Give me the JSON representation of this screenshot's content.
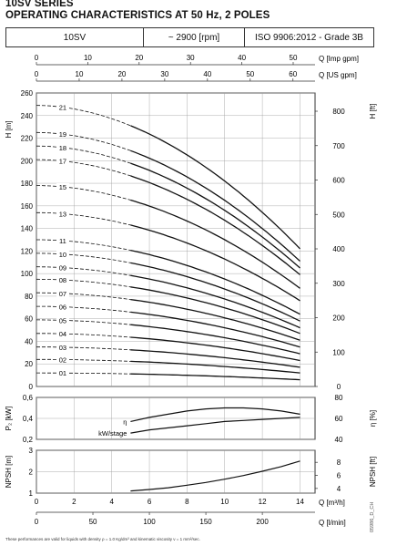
{
  "header": {
    "series": "10SV SERIES",
    "subtitle": "OPERATING CHARACTERISTICS AT 50 Hz, 2 POLES",
    "cells": [
      "10SV",
      "~ 2900 [rpm]",
      "ISO 9906:2012 - Grade 3B"
    ]
  },
  "top_axes": {
    "imp_label": "Q [Imp gpm]",
    "imp_ticks": [
      0,
      10,
      20,
      30,
      40,
      50
    ],
    "us_label": "Q [US gpm]",
    "us_ticks": [
      0,
      10,
      20,
      30,
      40,
      50,
      60
    ]
  },
  "bottom_axes": {
    "m3h_label": "Q [m³/h]",
    "m3h_ticks": [
      0,
      2,
      4,
      6,
      8,
      10,
      12,
      14
    ],
    "lmin_label": "Q [l/min]",
    "lmin_ticks": [
      0,
      50,
      100,
      150,
      200
    ]
  },
  "colors": {
    "curve": "#111111",
    "grid": "#999999",
    "frame": "#333333"
  },
  "chart_data": [
    {
      "type": "line",
      "name": "head",
      "xlabel": "Q [m³/h]",
      "ylabel": "H [m]",
      "ylabel_right": "H [ft]",
      "xlim": [
        0,
        14.8
      ],
      "ylim": [
        0,
        260
      ],
      "yticks": [
        0,
        20,
        40,
        60,
        80,
        100,
        120,
        140,
        160,
        180,
        200,
        220,
        240,
        260
      ],
      "yticks_right": [
        0,
        100,
        200,
        300,
        400,
        500,
        600,
        700,
        800
      ],
      "grid": true,
      "operating_range": [
        5,
        14
      ],
      "series": [
        {
          "name": "01",
          "shutoff": 12,
          "end": 6
        },
        {
          "name": "02",
          "shutoff": 24,
          "end": 12
        },
        {
          "name": "03",
          "shutoff": 35,
          "end": 17
        },
        {
          "name": "04",
          "shutoff": 47,
          "end": 23
        },
        {
          "name": "05",
          "shutoff": 59,
          "end": 29
        },
        {
          "name": "06",
          "shutoff": 71,
          "end": 35
        },
        {
          "name": "07",
          "shutoff": 83,
          "end": 41
        },
        {
          "name": "08",
          "shutoff": 95,
          "end": 47
        },
        {
          "name": "09",
          "shutoff": 106,
          "end": 52
        },
        {
          "name": "10",
          "shutoff": 118,
          "end": 58
        },
        {
          "name": "11",
          "shutoff": 130,
          "end": 64
        },
        {
          "name": "13",
          "shutoff": 154,
          "end": 76
        },
        {
          "name": "15",
          "shutoff": 178,
          "end": 87
        },
        {
          "name": "17",
          "shutoff": 201,
          "end": 99
        },
        {
          "name": "18",
          "shutoff": 213,
          "end": 105
        },
        {
          "name": "19",
          "shutoff": 225,
          "end": 111
        },
        {
          "name": "21",
          "shutoff": 249,
          "end": 122
        }
      ]
    },
    {
      "type": "line",
      "name": "power_efficiency",
      "ylabel": "P₂ [kW]",
      "ylabel_right": "η [%]",
      "ylim": [
        0.2,
        0.6
      ],
      "yticks": [
        0.2,
        0.4,
        0.6
      ],
      "ylim_right": [
        40,
        80
      ],
      "yticks_right": [
        40,
        60,
        80
      ],
      "series": [
        {
          "name": "η",
          "x": [
            5,
            6,
            7,
            8,
            9,
            10,
            11,
            12,
            13,
            14
          ],
          "y": [
            57,
            61,
            64,
            67,
            69,
            70,
            70,
            69,
            67,
            64
          ]
        },
        {
          "name": "kW/stage",
          "x": [
            5,
            6,
            7,
            8,
            9,
            10,
            11,
            12,
            13,
            14
          ],
          "y": [
            0.26,
            0.29,
            0.31,
            0.33,
            0.35,
            0.37,
            0.38,
            0.39,
            0.4,
            0.41
          ]
        }
      ]
    },
    {
      "type": "line",
      "name": "npsh",
      "ylabel": "NPSH [m]",
      "ylabel_right": "NPSH [ft]",
      "ylim": [
        1,
        3
      ],
      "yticks": [
        1,
        2,
        3
      ],
      "yticks_right": [
        4,
        6,
        8
      ],
      "series": [
        {
          "name": "NPSH",
          "x": [
            5,
            6,
            7,
            8,
            9,
            10,
            11,
            12,
            13,
            14
          ],
          "y": [
            1.1,
            1.17,
            1.25,
            1.37,
            1.5,
            1.65,
            1.82,
            2.02,
            2.24,
            2.5
          ]
        }
      ]
    }
  ],
  "footnote": "These performances are valid for liquids with density ρ = 1.0 Kg/dm³ and kinematic viscosity ν = 1 mm²/sec.",
  "code": "05986_D_CH"
}
